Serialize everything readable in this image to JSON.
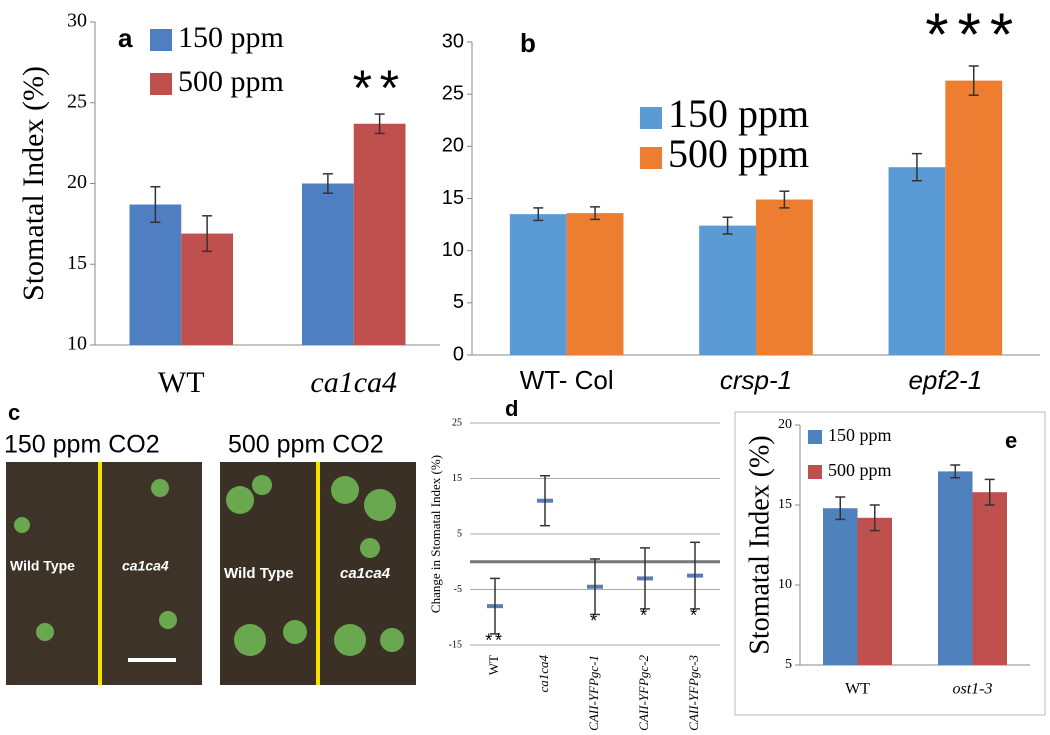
{
  "chart_data": [
    {
      "type": "bar",
      "panel_label": "a",
      "y_label": "Stomatal Index (%)",
      "categories": [
        "WT",
        "ca1ca4"
      ],
      "series": [
        {
          "name": "150 ppm",
          "color": "#4f7fc0",
          "values": [
            18.7,
            20.0
          ],
          "errors": [
            1.1,
            0.6
          ]
        },
        {
          "name": "500 ppm",
          "color": "#c0504d",
          "values": [
            16.9,
            23.7
          ],
          "errors": [
            1.1,
            0.6
          ],
          "annotations": [
            null,
            "**"
          ]
        }
      ],
      "ylim": [
        10,
        30
      ],
      "yticks": [
        10,
        15,
        20,
        25,
        30
      ],
      "grid": false
    },
    {
      "type": "bar",
      "panel_label": "b",
      "categories": [
        "WT- Col",
        "crsp-1",
        "epf2-1"
      ],
      "series": [
        {
          "name": "150 ppm",
          "color": "#5b9bd5",
          "values": [
            13.5,
            12.4,
            18.0
          ],
          "errors": [
            0.6,
            0.8,
            1.3
          ]
        },
        {
          "name": "500 ppm",
          "color": "#ed7d31",
          "values": [
            13.6,
            14.9,
            26.3
          ],
          "errors": [
            0.6,
            0.8,
            1.4
          ],
          "annotations": [
            null,
            null,
            "***"
          ]
        }
      ],
      "ylim": [
        0,
        30
      ],
      "yticks": [
        0,
        5,
        10,
        15,
        20,
        25,
        30
      ],
      "grid": false
    },
    {
      "type": "errorbar",
      "panel_label": "d",
      "y_label": "Change in Stomatal Index (%)",
      "categories": [
        "WT",
        "ca1ca4",
        "CAII-YFPgc-1",
        "CAII-YFPgc-2",
        "CAII-YFPgc-3"
      ],
      "series": [
        {
          "color": "#5a7db5",
          "values": [
            -8,
            11,
            -4.5,
            -3,
            -2.5
          ],
          "errors": [
            5,
            4.5,
            5,
            5.5,
            6
          ],
          "annotations": [
            "**",
            null,
            "*",
            "*",
            "*"
          ]
        }
      ],
      "ylim": [
        -15,
        25
      ],
      "yticks": [
        -15,
        -5,
        5,
        15,
        25
      ],
      "grid": true,
      "zero_line": true
    },
    {
      "type": "bar",
      "panel_label": "e",
      "y_label": "Stomatal Index (%)",
      "categories": [
        "WT",
        "ost1-3"
      ],
      "series": [
        {
          "name": "150 ppm",
          "color": "#4f81bd",
          "values": [
            14.8,
            17.1
          ],
          "errors": [
            0.7,
            0.4
          ]
        },
        {
          "name": "500 ppm",
          "color": "#c0504d",
          "values": [
            14.2,
            15.8
          ],
          "errors": [
            0.8,
            0.8
          ]
        }
      ],
      "ylim": [
        5,
        20
      ],
      "yticks": [
        5,
        10,
        15,
        20
      ],
      "grid": false
    }
  ],
  "photo_panel": {
    "label": "c",
    "images": [
      {
        "title": "150 ppm CO2",
        "left_label": "Wild Type",
        "right_label": "ca1ca4"
      },
      {
        "title": "500 ppm CO2",
        "left_label": "Wild Type",
        "right_label": "ca1ca4"
      }
    ]
  }
}
